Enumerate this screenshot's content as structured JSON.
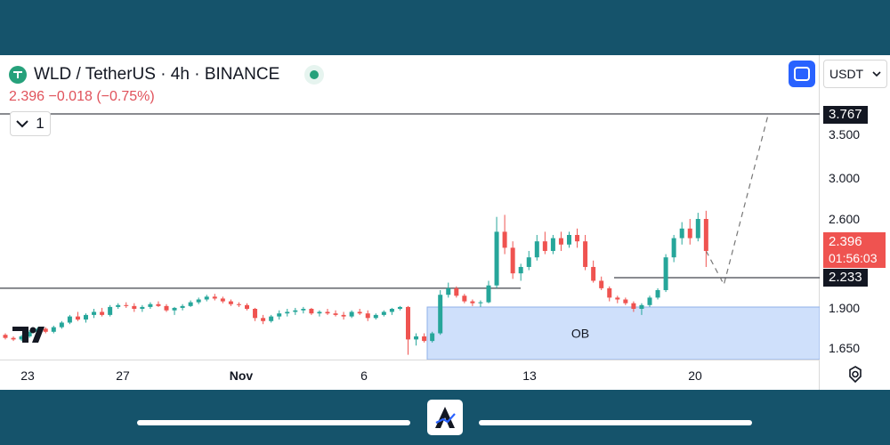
{
  "header": {
    "symbol": "WLD / TetherUS · 4h · BINANCE",
    "price_line": "2.396  −0.018 (−0.75%)",
    "collapse_count": "1"
  },
  "currency": {
    "selected": "USDT"
  },
  "price_axis": {
    "ticks": [
      "3.500",
      "3.000",
      "2.600",
      "1.900",
      "1.650"
    ],
    "target_label": "3.767",
    "current_price_label": "2.396",
    "countdown_label": "01:56:03",
    "level_label": "2.233"
  },
  "time_axis": {
    "ticks": [
      "23",
      "27",
      "Nov",
      "6",
      "13",
      "20"
    ]
  },
  "zone": {
    "label": "OB",
    "color": "#cfe0fb"
  },
  "colors": {
    "up": "#26a69a",
    "down": "#ef5350",
    "accent": "#2962ff",
    "frame": "#15536b"
  },
  "icons": {
    "logo": "tether-logo",
    "fullscreen": "fullscreen-icon",
    "settings": "gear-icon",
    "brand": "tradingview-logo"
  },
  "chart_data": {
    "type": "candlestick",
    "title": "WLD / TetherUS · 4h · BINANCE",
    "ylim": [
      1.55,
      4.05
    ],
    "x_ticks": [
      "23",
      "27",
      "Nov",
      "6",
      "13",
      "20"
    ],
    "series": [
      {
        "values": [
          [
            1.73,
            1.74,
            1.7,
            1.71
          ],
          [
            1.71,
            1.72,
            1.69,
            1.7
          ],
          [
            1.7,
            1.73,
            1.69,
            1.72
          ],
          [
            1.72,
            1.76,
            1.71,
            1.75
          ],
          [
            1.75,
            1.78,
            1.74,
            1.77
          ],
          [
            1.77,
            1.78,
            1.74,
            1.75
          ],
          [
            1.75,
            1.79,
            1.74,
            1.78
          ],
          [
            1.78,
            1.82,
            1.77,
            1.81
          ],
          [
            1.81,
            1.86,
            1.8,
            1.85
          ],
          [
            1.85,
            1.88,
            1.82,
            1.83
          ],
          [
            1.83,
            1.87,
            1.81,
            1.86
          ],
          [
            1.86,
            1.9,
            1.84,
            1.88
          ],
          [
            1.88,
            1.91,
            1.85,
            1.86
          ],
          [
            1.86,
            1.94,
            1.85,
            1.92
          ],
          [
            1.92,
            1.96,
            1.9,
            1.94
          ],
          [
            1.94,
            1.97,
            1.91,
            1.93
          ],
          [
            1.93,
            1.96,
            1.88,
            1.9
          ],
          [
            1.9,
            1.94,
            1.88,
            1.92
          ],
          [
            1.92,
            1.97,
            1.9,
            1.95
          ],
          [
            1.95,
            1.98,
            1.92,
            1.93
          ],
          [
            1.93,
            1.95,
            1.88,
            1.89
          ],
          [
            1.89,
            1.92,
            1.86,
            1.91
          ],
          [
            1.91,
            1.95,
            1.89,
            1.93
          ],
          [
            1.93,
            1.99,
            1.92,
            1.97
          ],
          [
            1.97,
            2.02,
            1.95,
            2.0
          ],
          [
            2.0,
            2.05,
            1.98,
            2.03
          ],
          [
            2.03,
            2.06,
            1.99,
            2.01
          ],
          [
            2.01,
            2.03,
            1.96,
            1.98
          ],
          [
            1.98,
            2.0,
            1.93,
            1.95
          ],
          [
            1.95,
            1.97,
            1.92,
            1.94
          ],
          [
            1.94,
            1.96,
            1.89,
            1.9
          ],
          [
            1.9,
            1.91,
            1.82,
            1.84
          ],
          [
            1.84,
            1.86,
            1.8,
            1.82
          ],
          [
            1.82,
            1.86,
            1.81,
            1.85
          ],
          [
            1.85,
            1.89,
            1.83,
            1.87
          ],
          [
            1.87,
            1.9,
            1.85,
            1.88
          ],
          [
            1.88,
            1.91,
            1.86,
            1.89
          ],
          [
            1.89,
            1.92,
            1.87,
            1.9
          ],
          [
            1.9,
            1.91,
            1.86,
            1.87
          ],
          [
            1.87,
            1.89,
            1.85,
            1.88
          ],
          [
            1.88,
            1.9,
            1.86,
            1.87
          ],
          [
            1.87,
            1.89,
            1.85,
            1.86
          ],
          [
            1.86,
            1.88,
            1.83,
            1.85
          ],
          [
            1.85,
            1.89,
            1.84,
            1.88
          ],
          [
            1.88,
            1.9,
            1.86,
            1.87
          ],
          [
            1.87,
            1.89,
            1.82,
            1.84
          ],
          [
            1.84,
            1.87,
            1.83,
            1.86
          ],
          [
            1.86,
            1.89,
            1.85,
            1.88
          ],
          [
            1.88,
            1.91,
            1.86,
            1.9
          ],
          [
            1.9,
            1.93,
            1.89,
            1.92
          ],
          [
            1.92,
            1.93,
            1.6,
            1.7
          ],
          [
            1.7,
            1.74,
            1.66,
            1.72
          ],
          [
            1.72,
            1.74,
            1.68,
            1.69
          ],
          [
            1.69,
            1.75,
            1.68,
            1.74
          ],
          [
            1.74,
            2.1,
            1.73,
            2.05
          ],
          [
            2.05,
            2.18,
            2.02,
            2.12
          ],
          [
            2.12,
            2.14,
            2.02,
            2.04
          ],
          [
            2.04,
            2.06,
            1.96,
            1.98
          ],
          [
            1.98,
            2.0,
            1.93,
            1.96
          ],
          [
            1.96,
            1.99,
            1.92,
            1.97
          ],
          [
            1.97,
            2.2,
            1.96,
            2.15
          ],
          [
            2.15,
            2.62,
            2.12,
            2.52
          ],
          [
            2.52,
            2.64,
            2.38,
            2.42
          ],
          [
            2.42,
            2.46,
            2.22,
            2.26
          ],
          [
            2.26,
            2.32,
            2.2,
            2.3
          ],
          [
            2.3,
            2.4,
            2.28,
            2.36
          ],
          [
            2.36,
            2.5,
            2.34,
            2.46
          ],
          [
            2.46,
            2.52,
            2.38,
            2.4
          ],
          [
            2.4,
            2.5,
            2.38,
            2.48
          ],
          [
            2.48,
            2.52,
            2.4,
            2.44
          ],
          [
            2.44,
            2.52,
            2.42,
            2.5
          ],
          [
            2.5,
            2.54,
            2.42,
            2.46
          ],
          [
            2.46,
            2.5,
            2.28,
            2.3
          ],
          [
            2.3,
            2.34,
            2.18,
            2.2
          ],
          [
            2.2,
            2.24,
            2.1,
            2.12
          ],
          [
            2.12,
            2.14,
            1.98,
            2.02
          ],
          [
            2.02,
            2.04,
            1.96,
            2.0
          ],
          [
            2.0,
            2.02,
            1.94,
            1.96
          ],
          [
            1.96,
            1.98,
            1.88,
            1.9
          ],
          [
            1.9,
            1.96,
            1.86,
            1.94
          ],
          [
            1.94,
            2.04,
            1.92,
            2.02
          ],
          [
            2.02,
            2.12,
            2.0,
            2.1
          ],
          [
            2.1,
            2.38,
            2.08,
            2.36
          ],
          [
            2.36,
            2.5,
            2.33,
            2.48
          ],
          [
            2.48,
            2.58,
            2.44,
            2.54
          ],
          [
            2.54,
            2.6,
            2.44,
            2.48
          ],
          [
            2.48,
            2.66,
            2.46,
            2.6
          ],
          [
            2.6,
            2.68,
            2.3,
            2.4
          ]
        ]
      }
    ],
    "horizontal_levels": [
      3.767,
      2.233
    ],
    "annotations": [
      "OB"
    ]
  }
}
